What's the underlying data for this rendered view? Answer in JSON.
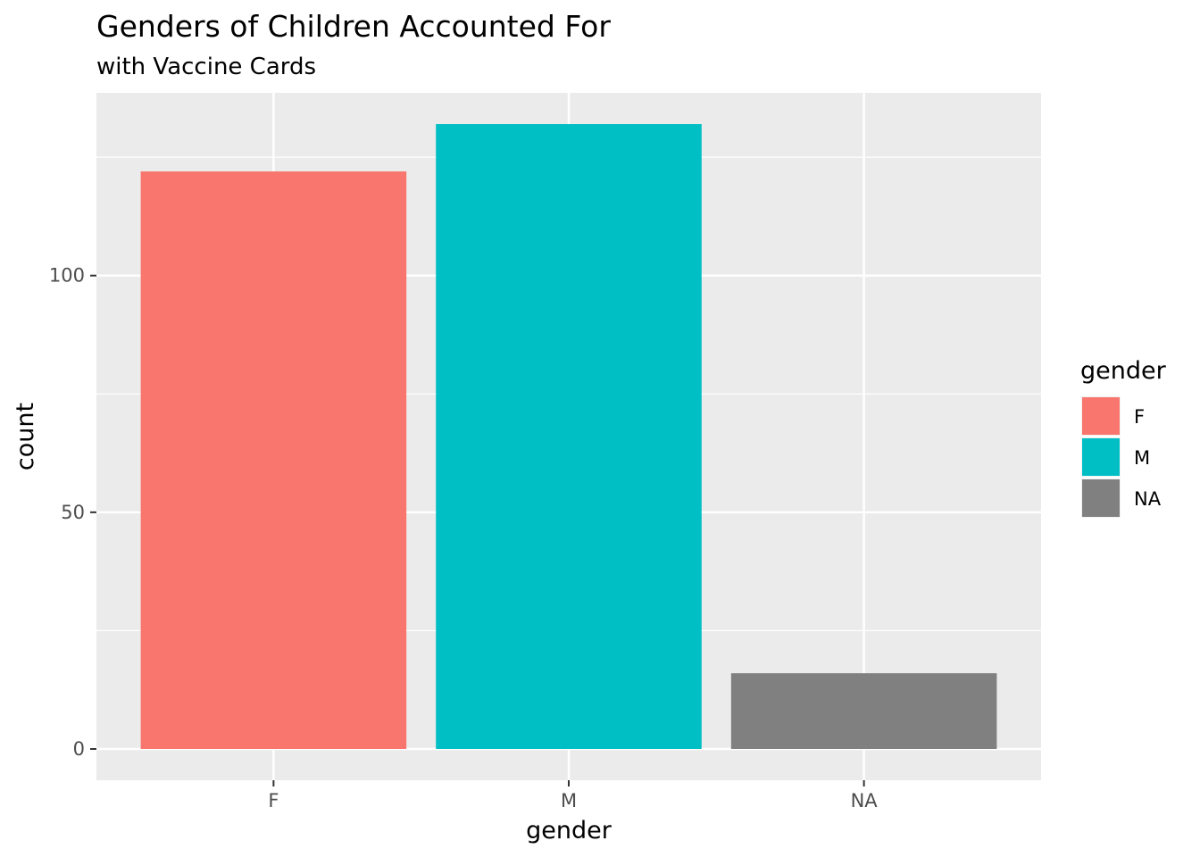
{
  "chart_data": {
    "type": "bar",
    "title": "Genders of Children Accounted For",
    "subtitle": "with Vaccine Cards",
    "xlabel": "gender",
    "ylabel": "count",
    "categories": [
      "F",
      "M",
      "NA"
    ],
    "values": [
      122,
      132,
      16
    ],
    "colors": [
      "#F8766D",
      "#00BFC4",
      "#808080"
    ],
    "ylim": [
      -6.6,
      138.6
    ],
    "yticks": [
      0,
      50,
      100
    ],
    "grid": true,
    "legend": {
      "title": "gender",
      "placement": "right",
      "entries": [
        {
          "label": "F",
          "color": "#F8766D"
        },
        {
          "label": "M",
          "color": "#00BFC4"
        },
        {
          "label": "NA",
          "color": "#808080"
        }
      ]
    }
  }
}
